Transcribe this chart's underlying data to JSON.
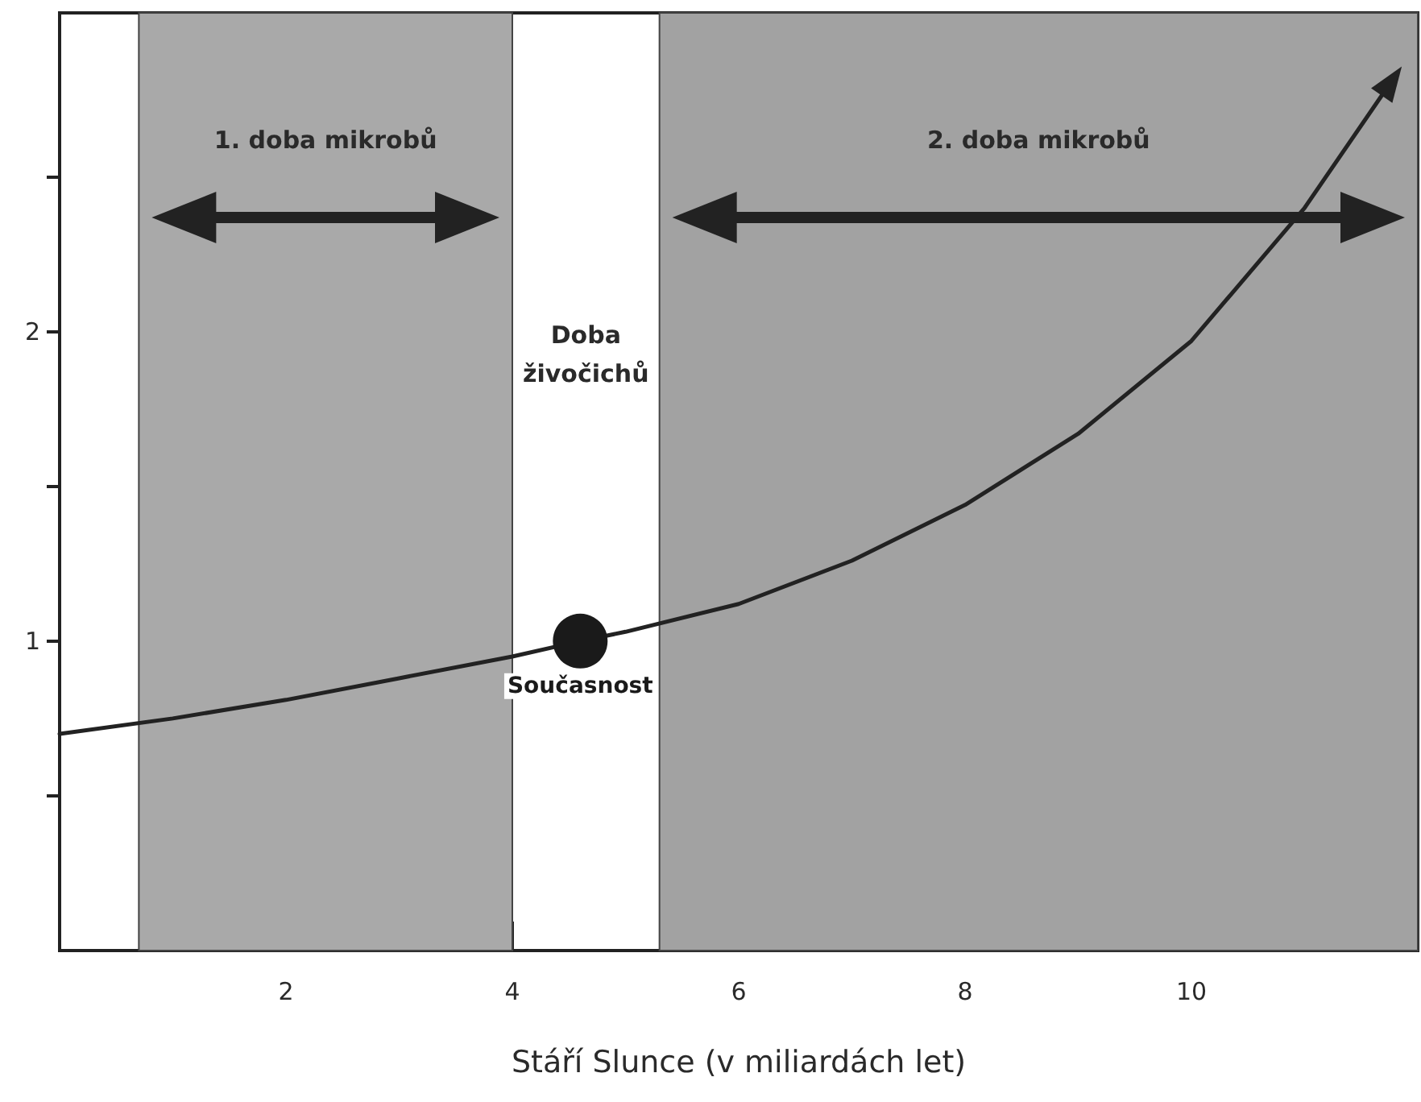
{
  "chart_data": {
    "type": "line",
    "xlabel": "Stáří Slunce (v miliardách let)",
    "xlim": [
      0,
      12
    ],
    "xticks": [
      2,
      4,
      6,
      8,
      10
    ],
    "ylim": [
      0,
      3.03
    ],
    "yticks": [
      {
        "value": 0.5,
        "label": null
      },
      1,
      {
        "value": 1.5,
        "label": null
      },
      2,
      {
        "value": 2.5,
        "label": null
      }
    ],
    "series": [
      {
        "color": "#222222",
        "x": [
          0,
          1,
          2,
          3,
          4,
          4.6,
          5,
          6,
          7,
          8,
          9,
          10,
          11,
          11.77
        ],
        "values": [
          0.7,
          0.75,
          0.81,
          0.88,
          0.95,
          1.0,
          1.03,
          1.12,
          1.26,
          1.44,
          1.67,
          1.97,
          2.4,
          2.81
        ]
      },
      {
        "type": "scatter",
        "name": "Současnost",
        "color": "#1a1a1a",
        "x": [
          4.6
        ],
        "values": [
          1.0
        ]
      }
    ],
    "bands": [
      {
        "axis": "x",
        "from": 0.7,
        "to": 4,
        "label": "1. doba mikrobů",
        "color": "#a9a9a9"
      },
      {
        "axis": "x",
        "from": 5.3,
        "to": 12,
        "label": "2. doba mikrobů",
        "color": "#a2a2a2"
      }
    ],
    "annotations": [
      "Doba živočichů"
    ],
    "grid": false,
    "legend": false,
    "line_style": "solid"
  }
}
